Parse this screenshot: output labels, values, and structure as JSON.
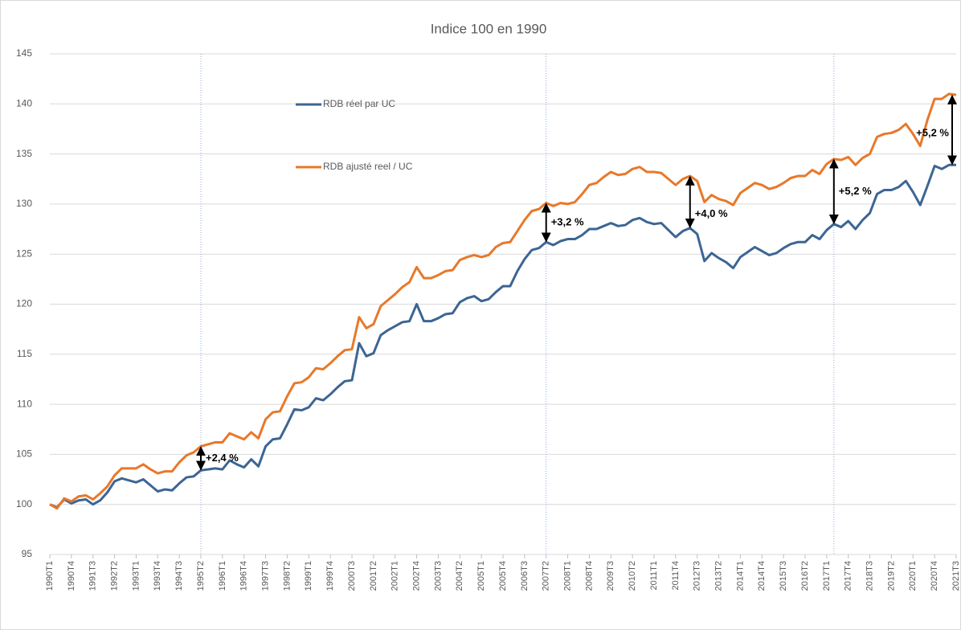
{
  "chart_data": {
    "type": "line",
    "title": "Indice 100 en 1990",
    "categories": [
      "1990T1",
      null,
      null,
      "1990T4",
      null,
      null,
      "1991T3",
      null,
      null,
      "1992T2",
      null,
      null,
      "1993T1",
      null,
      null,
      "1993T4",
      null,
      null,
      "1994T3",
      null,
      null,
      "1995T2",
      null,
      null,
      "1996T1",
      null,
      null,
      "1996T4",
      null,
      null,
      "1997T3",
      null,
      null,
      "1998T2",
      null,
      null,
      "1999T1",
      null,
      null,
      "1999T4",
      null,
      null,
      "2000T3",
      null,
      null,
      "2001T2",
      null,
      null,
      "2002T1",
      null,
      null,
      "2002T4",
      null,
      null,
      "2003T3",
      null,
      null,
      "2004T2",
      null,
      null,
      "2005T1",
      null,
      null,
      "2005T4",
      null,
      null,
      "2006T3",
      null,
      null,
      "2007T2",
      null,
      null,
      "2008T1",
      null,
      null,
      "2008T4",
      null,
      null,
      "2009T3",
      null,
      null,
      "2010T2",
      null,
      null,
      "2011T1",
      null,
      null,
      "2011T4",
      null,
      null,
      "2012T3",
      null,
      null,
      "2013T2",
      null,
      null,
      "2014T1",
      null,
      null,
      "2014T4",
      null,
      null,
      "2015T3",
      null,
      null,
      "2016T2",
      null,
      null,
      "2017T1",
      null,
      null,
      "2017T4",
      null,
      null,
      "2018T3",
      null,
      null,
      "2019T2",
      null,
      null,
      "2020T1",
      null,
      null,
      "2020T4",
      null,
      null,
      "2021T3"
    ],
    "series": [
      {
        "name": "RDB réel par UC",
        "color": "#3c6594",
        "values": [
          100,
          99.7,
          100.5,
          100.1,
          100.4,
          100.5,
          100.0,
          100.4,
          101.2,
          102.3,
          102.6,
          102.4,
          102.2,
          102.5,
          101.9,
          101.3,
          101.5,
          101.4,
          102.1,
          102.7,
          102.8,
          103.4,
          103.5,
          103.6,
          103.5,
          104.4,
          104.0,
          103.7,
          104.5,
          103.8,
          105.8,
          106.5,
          106.6,
          108.0,
          109.5,
          109.4,
          109.7,
          110.6,
          110.4,
          111.0,
          111.7,
          112.3,
          112.4,
          116.1,
          114.8,
          115.1,
          116.9,
          117.4,
          117.8,
          118.2,
          118.3,
          120.0,
          118.3,
          118.3,
          118.6,
          119.0,
          119.1,
          120.2,
          120.6,
          120.8,
          120.3,
          120.5,
          121.2,
          121.8,
          121.8,
          123.3,
          124.5,
          125.4,
          125.6,
          126.2,
          125.9,
          126.3,
          126.5,
          126.5,
          126.9,
          127.5,
          127.5,
          127.8,
          128.1,
          127.8,
          127.9,
          128.4,
          128.6,
          128.2,
          128.0,
          128.1,
          127.4,
          126.7,
          127.3,
          127.6,
          127.0,
          124.3,
          125.1,
          124.6,
          124.2,
          123.6,
          124.7,
          125.2,
          125.7,
          125.3,
          124.9,
          125.1,
          125.6,
          126.0,
          126.2,
          126.2,
          126.9,
          126.5,
          127.4,
          128.0,
          127.7,
          128.3,
          127.5,
          128.4,
          129.1,
          131.0,
          131.4,
          131.4,
          131.7,
          132.3,
          131.2,
          129.9,
          131.8,
          133.8,
          133.5,
          133.9,
          133.9
        ]
      },
      {
        "name": "RDB ajusté reel / UC",
        "color": "#e8782a",
        "values": [
          100,
          99.6,
          100.6,
          100.3,
          100.8,
          100.9,
          100.5,
          101.1,
          101.8,
          102.9,
          103.6,
          103.6,
          103.6,
          104.0,
          103.5,
          103.1,
          103.3,
          103.3,
          104.2,
          104.9,
          105.2,
          105.8,
          106.0,
          106.2,
          106.2,
          107.1,
          106.8,
          106.5,
          107.2,
          106.6,
          108.5,
          109.2,
          109.3,
          110.8,
          112.1,
          112.2,
          112.7,
          113.6,
          113.5,
          114.1,
          114.8,
          115.4,
          115.5,
          118.7,
          117.6,
          118.0,
          119.8,
          120.4,
          121.0,
          121.7,
          122.2,
          123.7,
          122.6,
          122.6,
          122.9,
          123.3,
          123.4,
          124.4,
          124.7,
          124.9,
          124.7,
          124.9,
          125.7,
          126.1,
          126.2,
          127.3,
          128.4,
          129.3,
          129.5,
          130.1,
          129.8,
          130.1,
          130.0,
          130.2,
          131.0,
          131.9,
          132.1,
          132.7,
          133.2,
          132.9,
          133.0,
          133.5,
          133.7,
          133.2,
          133.2,
          133.1,
          132.5,
          131.9,
          132.5,
          132.8,
          132.3,
          130.2,
          130.9,
          130.5,
          130.3,
          129.9,
          131.1,
          131.6,
          132.1,
          131.9,
          131.5,
          131.7,
          132.1,
          132.6,
          132.8,
          132.8,
          133.4,
          133.0,
          134.0,
          134.5,
          134.4,
          134.7,
          133.9,
          134.6,
          135.0,
          136.7,
          137.0,
          137.1,
          137.4,
          138.0,
          137.0,
          135.8,
          138.4,
          140.5,
          140.5,
          141.0,
          140.9
        ]
      }
    ],
    "annotations": [
      "+2,4 %",
      "+3,2 %",
      "+4,0 %",
      "+5,2 %",
      "+5,2 %"
    ],
    "ylim": [
      95,
      145
    ],
    "yticks": [
      95,
      100,
      105,
      110,
      115,
      120,
      125,
      130,
      135,
      140,
      145
    ],
    "grid": true
  }
}
